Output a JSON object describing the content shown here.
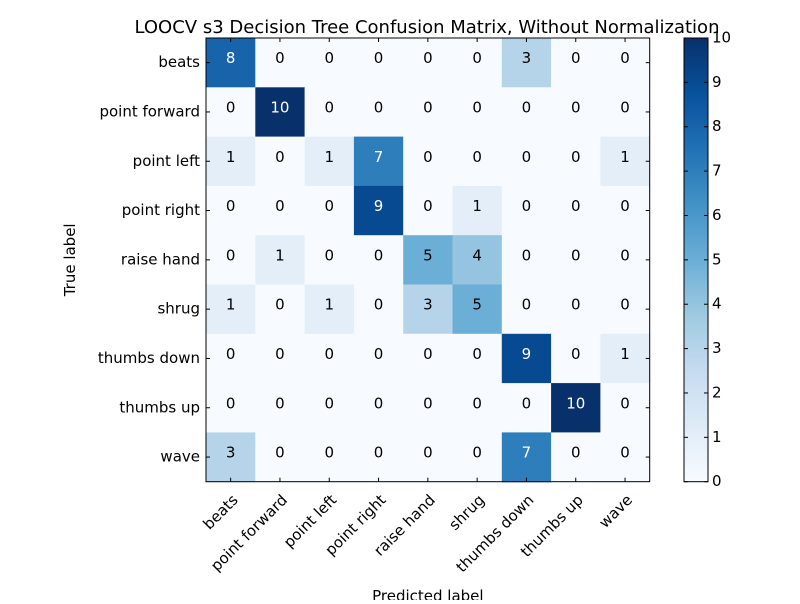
{
  "chart_data": {
    "type": "heatmap",
    "title": "LOOCV s3 Decision Tree Confusion Matrix, Without Normalization",
    "xlabel": "Predicted label",
    "ylabel": "True label",
    "x_categories": [
      "beats",
      "point forward",
      "point left",
      "point right",
      "raise hand",
      "shrug",
      "thumbs down",
      "thumbs up",
      "wave"
    ],
    "y_categories": [
      "beats",
      "point forward",
      "point left",
      "point right",
      "raise hand",
      "shrug",
      "thumbs down",
      "thumbs up",
      "wave"
    ],
    "matrix": [
      [
        8,
        0,
        0,
        0,
        0,
        0,
        3,
        0,
        0
      ],
      [
        0,
        10,
        0,
        0,
        0,
        0,
        0,
        0,
        0
      ],
      [
        1,
        0,
        1,
        7,
        0,
        0,
        0,
        0,
        1
      ],
      [
        0,
        0,
        0,
        9,
        0,
        1,
        0,
        0,
        0
      ],
      [
        0,
        1,
        0,
        0,
        5,
        4,
        0,
        0,
        0
      ],
      [
        1,
        0,
        1,
        0,
        3,
        5,
        0,
        0,
        0
      ],
      [
        0,
        0,
        0,
        0,
        0,
        0,
        9,
        0,
        1
      ],
      [
        0,
        0,
        0,
        0,
        0,
        0,
        0,
        10,
        0
      ],
      [
        3,
        0,
        0,
        0,
        0,
        0,
        7,
        0,
        0
      ]
    ],
    "colormap": "Blues",
    "color_range": [
      0,
      10
    ],
    "colorbar_ticks": [
      "0",
      "1",
      "2",
      "3",
      "4",
      "5",
      "6",
      "7",
      "8",
      "9",
      "10"
    ],
    "grid": false
  }
}
